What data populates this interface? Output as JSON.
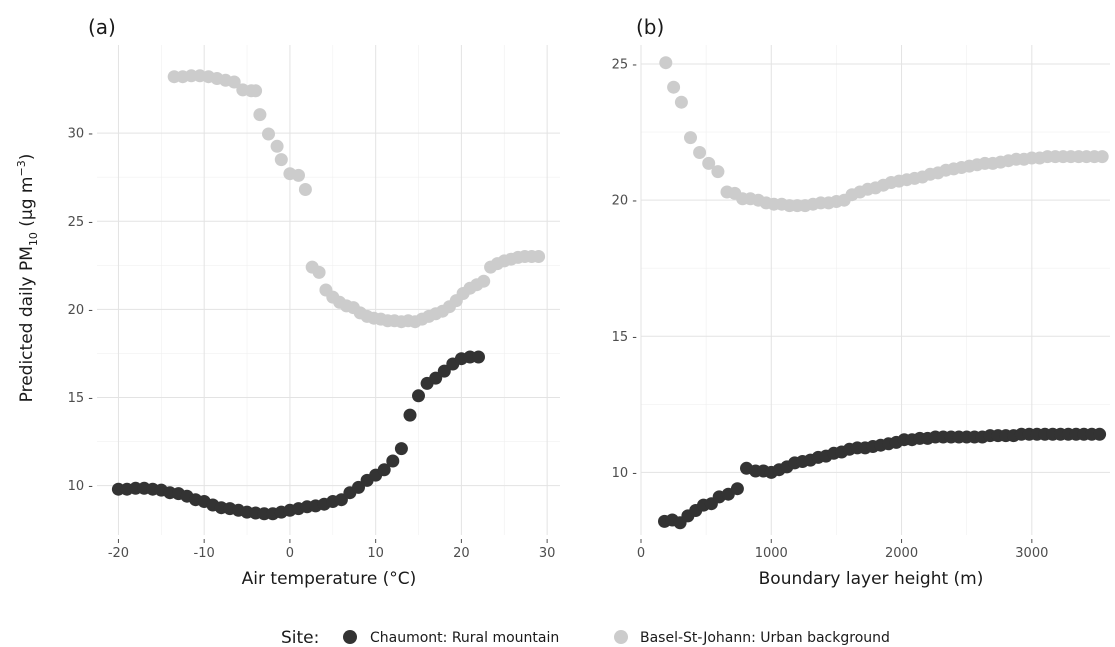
{
  "colors": {
    "chaumont": "#333333",
    "basel": "#cccccc"
  },
  "legend": {
    "title": "Site:",
    "items": [
      {
        "label": "Chaumont: Rural mountain",
        "color": "#333333"
      },
      {
        "label": "Basel-St-Johann: Urban background",
        "color": "#cccccc"
      }
    ]
  },
  "y_axis_title": {
    "main": "Predicted daily PM",
    "sub": "10",
    "unit_open": " (µg m",
    "sup": "−3",
    "unit_close": ")"
  },
  "chart_data": [
    {
      "type": "scatter",
      "panel_tag": "(a)",
      "xlabel": "Air temperature (°C)",
      "xlim": [
        -22.5,
        31.5
      ],
      "ylim": [
        7.2,
        35.0
      ],
      "xticks": [
        -20,
        -10,
        0,
        10,
        20,
        30
      ],
      "xtick_labels": [
        "-20",
        "-10",
        "0",
        "10",
        "20",
        "30"
      ],
      "yticks": [
        10,
        15,
        20,
        25,
        30
      ],
      "ytick_labels": [
        "10 -",
        "15 -",
        "20 -",
        "25 -",
        "30 -"
      ],
      "grid": true,
      "series": [
        {
          "name": "Chaumont: Rural mountain",
          "x": [
            -20,
            -19,
            -18,
            -17,
            -16,
            -15,
            -14,
            -13,
            -12,
            -11,
            -10,
            -9,
            -8,
            -7,
            -6,
            -5,
            -4,
            -3,
            -2,
            -1,
            0,
            1,
            2,
            3,
            4,
            5,
            6,
            7,
            8,
            9,
            10,
            11,
            12,
            13,
            14,
            15,
            16,
            17,
            18,
            19,
            20,
            21,
            22
          ],
          "y": [
            9.8,
            9.8,
            9.85,
            9.85,
            9.8,
            9.75,
            9.6,
            9.55,
            9.4,
            9.2,
            9.1,
            8.9,
            8.75,
            8.7,
            8.6,
            8.5,
            8.45,
            8.4,
            8.4,
            8.5,
            8.6,
            8.7,
            8.8,
            8.85,
            8.95,
            9.1,
            9.2,
            9.6,
            9.9,
            10.3,
            10.6,
            10.9,
            11.4,
            12.1,
            14.0,
            15.1,
            15.8,
            16.1,
            16.5,
            16.9,
            17.2,
            17.3,
            17.3
          ]
        },
        {
          "name": "Basel-St-Johann: Urban background",
          "x": [
            -13.5,
            -12.5,
            -11.5,
            -10.5,
            -9.5,
            -8.5,
            -7.5,
            -6.5,
            -5.5,
            -4.5,
            -4,
            -3.5,
            -2.5,
            -1.5,
            -1,
            0,
            1,
            1.8,
            2.6,
            3.4,
            4.2,
            5,
            5.8,
            6.6,
            7.4,
            8.2,
            9,
            9.8,
            10.6,
            11.4,
            12.2,
            13,
            13.8,
            14.6,
            15.4,
            16.2,
            17,
            17.8,
            18.6,
            19.4,
            20.2,
            21,
            21.8,
            22.6,
            23.4,
            24.2,
            25,
            25.8,
            26.6,
            27.4,
            28.2,
            29
          ],
          "y": [
            33.2,
            33.2,
            33.25,
            33.25,
            33.2,
            33.1,
            33.0,
            32.9,
            32.45,
            32.4,
            32.4,
            31.05,
            29.95,
            29.25,
            28.5,
            27.7,
            27.6,
            26.8,
            22.4,
            22.1,
            21.1,
            20.7,
            20.4,
            20.2,
            20.1,
            19.8,
            19.6,
            19.5,
            19.45,
            19.35,
            19.35,
            19.3,
            19.35,
            19.3,
            19.45,
            19.6,
            19.75,
            19.9,
            20.15,
            20.5,
            20.9,
            21.2,
            21.4,
            21.6,
            22.4,
            22.6,
            22.75,
            22.85,
            22.95,
            23.0,
            23.0,
            23.0
          ]
        }
      ]
    },
    {
      "type": "scatter",
      "panel_tag": "(b)",
      "xlabel": "Boundary layer height (m)",
      "xlim": [
        0,
        3600
      ],
      "ylim": [
        7.7,
        25.7
      ],
      "xticks": [
        0,
        1000,
        2000,
        3000
      ],
      "xtick_labels": [
        "0",
        "1000",
        "2000",
        "3000"
      ],
      "yticks": [
        10,
        15,
        20,
        25
      ],
      "ytick_labels": [
        "10 -",
        "15 -",
        "20 -",
        "25 -"
      ],
      "grid": true,
      "series": [
        {
          "name": "Chaumont: Rural mountain",
          "x": [
            180,
            240,
            300,
            360,
            420,
            480,
            540,
            600,
            670,
            740,
            810,
            880,
            940,
            1000,
            1060,
            1120,
            1180,
            1240,
            1300,
            1360,
            1420,
            1480,
            1540,
            1600,
            1660,
            1720,
            1780,
            1840,
            1900,
            1960,
            2020,
            2080,
            2140,
            2200,
            2260,
            2320,
            2380,
            2440,
            2500,
            2560,
            2620,
            2680,
            2740,
            2800,
            2860,
            2920,
            2980,
            3040,
            3100,
            3160,
            3220,
            3280,
            3340,
            3400,
            3460,
            3520
          ],
          "y": [
            8.2,
            8.25,
            8.15,
            8.4,
            8.6,
            8.8,
            8.85,
            9.1,
            9.2,
            9.4,
            10.15,
            10.05,
            10.05,
            10.0,
            10.1,
            10.2,
            10.35,
            10.4,
            10.45,
            10.55,
            10.6,
            10.7,
            10.75,
            10.85,
            10.9,
            10.9,
            10.95,
            11.0,
            11.05,
            11.1,
            11.2,
            11.2,
            11.25,
            11.25,
            11.3,
            11.3,
            11.3,
            11.3,
            11.3,
            11.3,
            11.3,
            11.35,
            11.35,
            11.35,
            11.35,
            11.4,
            11.4,
            11.4,
            11.4,
            11.4,
            11.4,
            11.4,
            11.4,
            11.4,
            11.4,
            11.4
          ]
        },
        {
          "name": "Basel-St-Johann: Urban background",
          "x": [
            190,
            250,
            310,
            380,
            450,
            520,
            590,
            660,
            720,
            780,
            840,
            900,
            960,
            1020,
            1080,
            1140,
            1200,
            1260,
            1320,
            1380,
            1440,
            1500,
            1560,
            1620,
            1680,
            1740,
            1800,
            1860,
            1920,
            1980,
            2040,
            2100,
            2160,
            2220,
            2280,
            2340,
            2400,
            2460,
            2520,
            2580,
            2640,
            2700,
            2760,
            2820,
            2880,
            2940,
            3000,
            3060,
            3120,
            3180,
            3240,
            3300,
            3360,
            3420,
            3480,
            3540
          ],
          "y": [
            25.05,
            24.15,
            23.6,
            22.3,
            21.75,
            21.35,
            21.05,
            20.3,
            20.25,
            20.05,
            20.05,
            20.0,
            19.9,
            19.85,
            19.85,
            19.8,
            19.8,
            19.8,
            19.85,
            19.9,
            19.9,
            19.95,
            20.0,
            20.2,
            20.3,
            20.4,
            20.45,
            20.55,
            20.65,
            20.7,
            20.75,
            20.8,
            20.85,
            20.95,
            21.0,
            21.1,
            21.15,
            21.2,
            21.25,
            21.3,
            21.35,
            21.35,
            21.4,
            21.45,
            21.5,
            21.5,
            21.55,
            21.55,
            21.6,
            21.6,
            21.6,
            21.6,
            21.6,
            21.6,
            21.6,
            21.6
          ]
        }
      ]
    }
  ]
}
